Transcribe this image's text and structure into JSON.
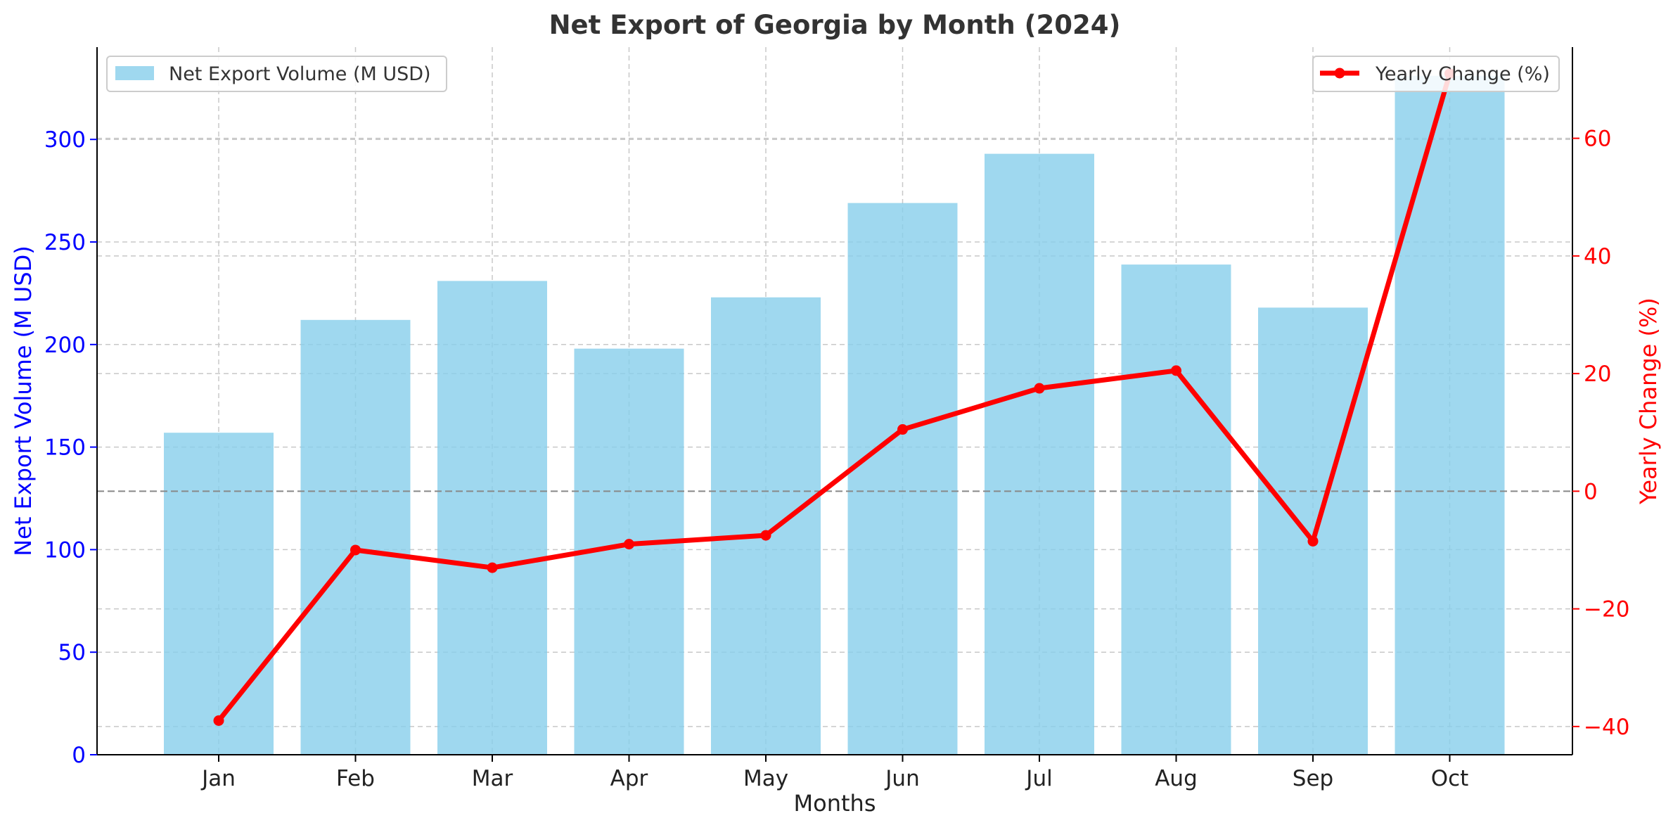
{
  "chart_data": {
    "type": "bar",
    "title": "Net Export of Georgia by Month (2024)",
    "xlabel": "Months",
    "ylabel": "Net Export Volume (M USD)",
    "y2label": "Yearly Change (%)",
    "categories": [
      "Jan",
      "Feb",
      "Mar",
      "Apr",
      "May",
      "Jun",
      "Jul",
      "Aug",
      "Sep",
      "Oct"
    ],
    "series": [
      {
        "name": "Net Export Volume (M USD)",
        "type": "bar",
        "axis": "left",
        "color": "#87CEEB",
        "values": [
          157,
          212,
          231,
          198,
          223,
          269,
          293,
          239,
          218,
          331
        ]
      },
      {
        "name": "Yearly Change (%)",
        "type": "line",
        "axis": "right",
        "color": "#ff0000",
        "values": [
          -39,
          -10,
          -13,
          -9,
          -7.5,
          10.5,
          17.5,
          20.5,
          -8.5,
          71
        ]
      }
    ],
    "ylim": [
      0,
      345
    ],
    "y2lim": [
      -44.8,
      75.5
    ],
    "yticks": [
      0,
      50,
      100,
      150,
      200,
      250,
      300
    ],
    "y2ticks": [
      -40,
      -20,
      0,
      20,
      40,
      60
    ],
    "y2tick_labels": [
      "−40",
      "−20",
      "0",
      "20",
      "40",
      "60"
    ],
    "y_axis_color": "#0000ff",
    "y2_axis_color": "#ff0000",
    "zero_line_color": "#888888",
    "grid": true,
    "legend_left_position": "top-left",
    "legend_right_position": "top-right"
  }
}
